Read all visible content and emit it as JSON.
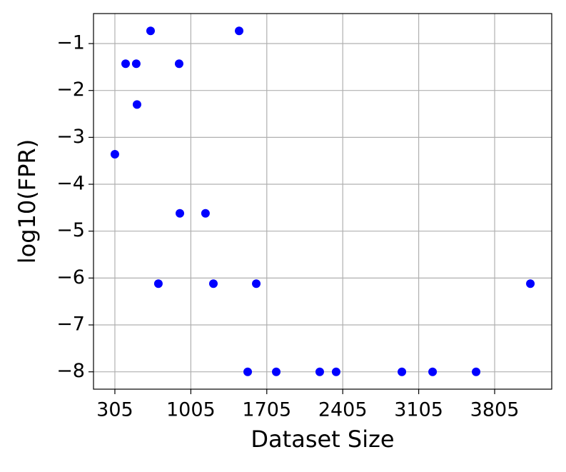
{
  "chart_data": {
    "type": "scatter",
    "x_label": "Dataset Size",
    "y_label": "log10(FPR)",
    "color": "#0000ff",
    "grid": true,
    "x": [
      305,
      404,
      502,
      509,
      634,
      706,
      897,
      904,
      1140,
      1213,
      1450,
      1529,
      1608,
      1792,
      2193,
      2344,
      2950,
      3233,
      3634,
      4134
    ],
    "values": [
      -3.36,
      -1.43,
      -1.43,
      -2.3,
      -0.73,
      -6.12,
      -1.43,
      -4.62,
      -4.62,
      -6.12,
      -0.73,
      -8,
      -6.12,
      -8,
      -8,
      -8,
      -8,
      -8,
      -8,
      -6.12
    ],
    "xlim": [
      108,
      4331
    ],
    "ylim": [
      -8.37,
      -0.36
    ],
    "xticks": [
      305,
      1005,
      1705,
      2405,
      3105,
      3805
    ],
    "yticks": [
      {
        "value": -8,
        "label": "−8"
      },
      {
        "value": -7,
        "label": "−7"
      },
      {
        "value": -6,
        "label": "−6"
      },
      {
        "value": -5,
        "label": "−5"
      },
      {
        "value": -4,
        "label": "−4"
      },
      {
        "value": -3,
        "label": "−3"
      },
      {
        "value": -2,
        "label": "−2"
      },
      {
        "value": -1,
        "label": "−1"
      }
    ]
  }
}
